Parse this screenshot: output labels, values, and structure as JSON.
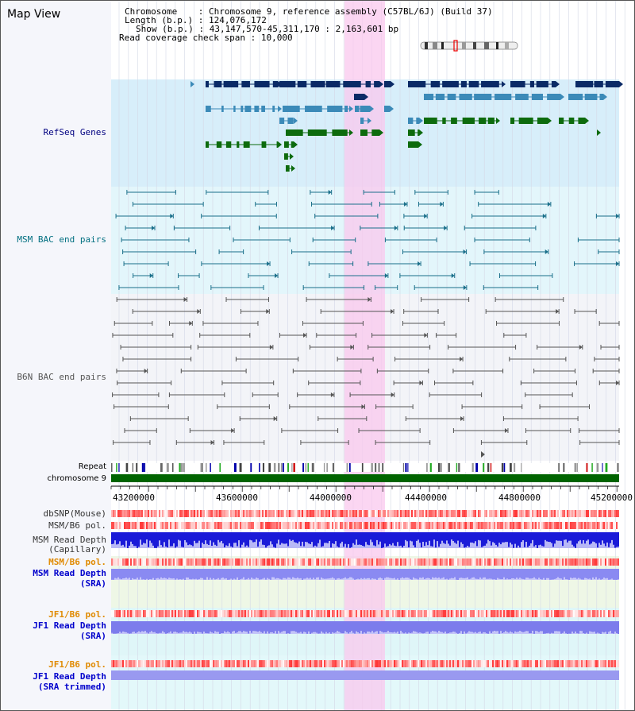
{
  "view": {
    "title": "Map View",
    "info": {
      "chromosome_label": "Chromosome",
      "chromosome_value": "Chromosome 9, reference assembly (C57BL/6J) (Build 37)",
      "length_label": "Length (b.p.)",
      "length_value": "124,076,172",
      "show_label": "Show (b.p.)",
      "show_value": "43,147,570-45,311,170 : 2,163,601 bp",
      "coverage_label": "Read coverage check span",
      "coverage_value": "10,000"
    },
    "highlight_color": "#f9c8ee"
  },
  "tracks": {
    "refseq": {
      "label": "RefSeq Genes",
      "bg": "#d7eefa",
      "colors": [
        "#0a2a66",
        "#3b8ab8",
        "#0d6b0d"
      ]
    },
    "msm_bac": {
      "label": "MSM BAC end pairs",
      "bg": "#e3f6fb",
      "color": "#1a6f8a"
    },
    "b6n_bac": {
      "label": "B6N BAC end pairs",
      "bg": "#f3f4f8",
      "color": "#555555"
    },
    "repeat": {
      "label": "Repeat"
    },
    "chromosome": {
      "label": "chromosome 9",
      "color": "#006400"
    },
    "axis": {
      "ticks": [
        "43200000",
        "43600000",
        "44000000",
        "44400000",
        "44800000",
        "45200000"
      ]
    },
    "quant": [
      {
        "label": "dbSNP(Mouse)",
        "style": "dark",
        "kind": "snp"
      },
      {
        "label": "MSM/B6 pol.",
        "style": "dark",
        "kind": "snp"
      },
      {
        "label": "MSM Read Depth",
        "label2": "(Capillary)",
        "style": "dark",
        "kind": "depth-dark"
      },
      {
        "label": "MSM/B6 pol.",
        "style": "orange",
        "kind": "snp"
      },
      {
        "label": "MSM Read Depth",
        "label2": "(SRA)",
        "style": "blue",
        "kind": "depth-light"
      },
      {
        "label": "JF1/B6 pol.",
        "style": "orange",
        "kind": "snp"
      },
      {
        "label": "JF1 Read Depth",
        "label2": "(SRA)",
        "style": "blue",
        "kind": "depth-light"
      },
      {
        "label": "JF1/B6 pol.",
        "style": "orange",
        "kind": "snp"
      },
      {
        "label": "JF1 Read Depth",
        "label2": "(SRA trimmed)",
        "style": "blue",
        "kind": "depth-flat"
      }
    ]
  }
}
